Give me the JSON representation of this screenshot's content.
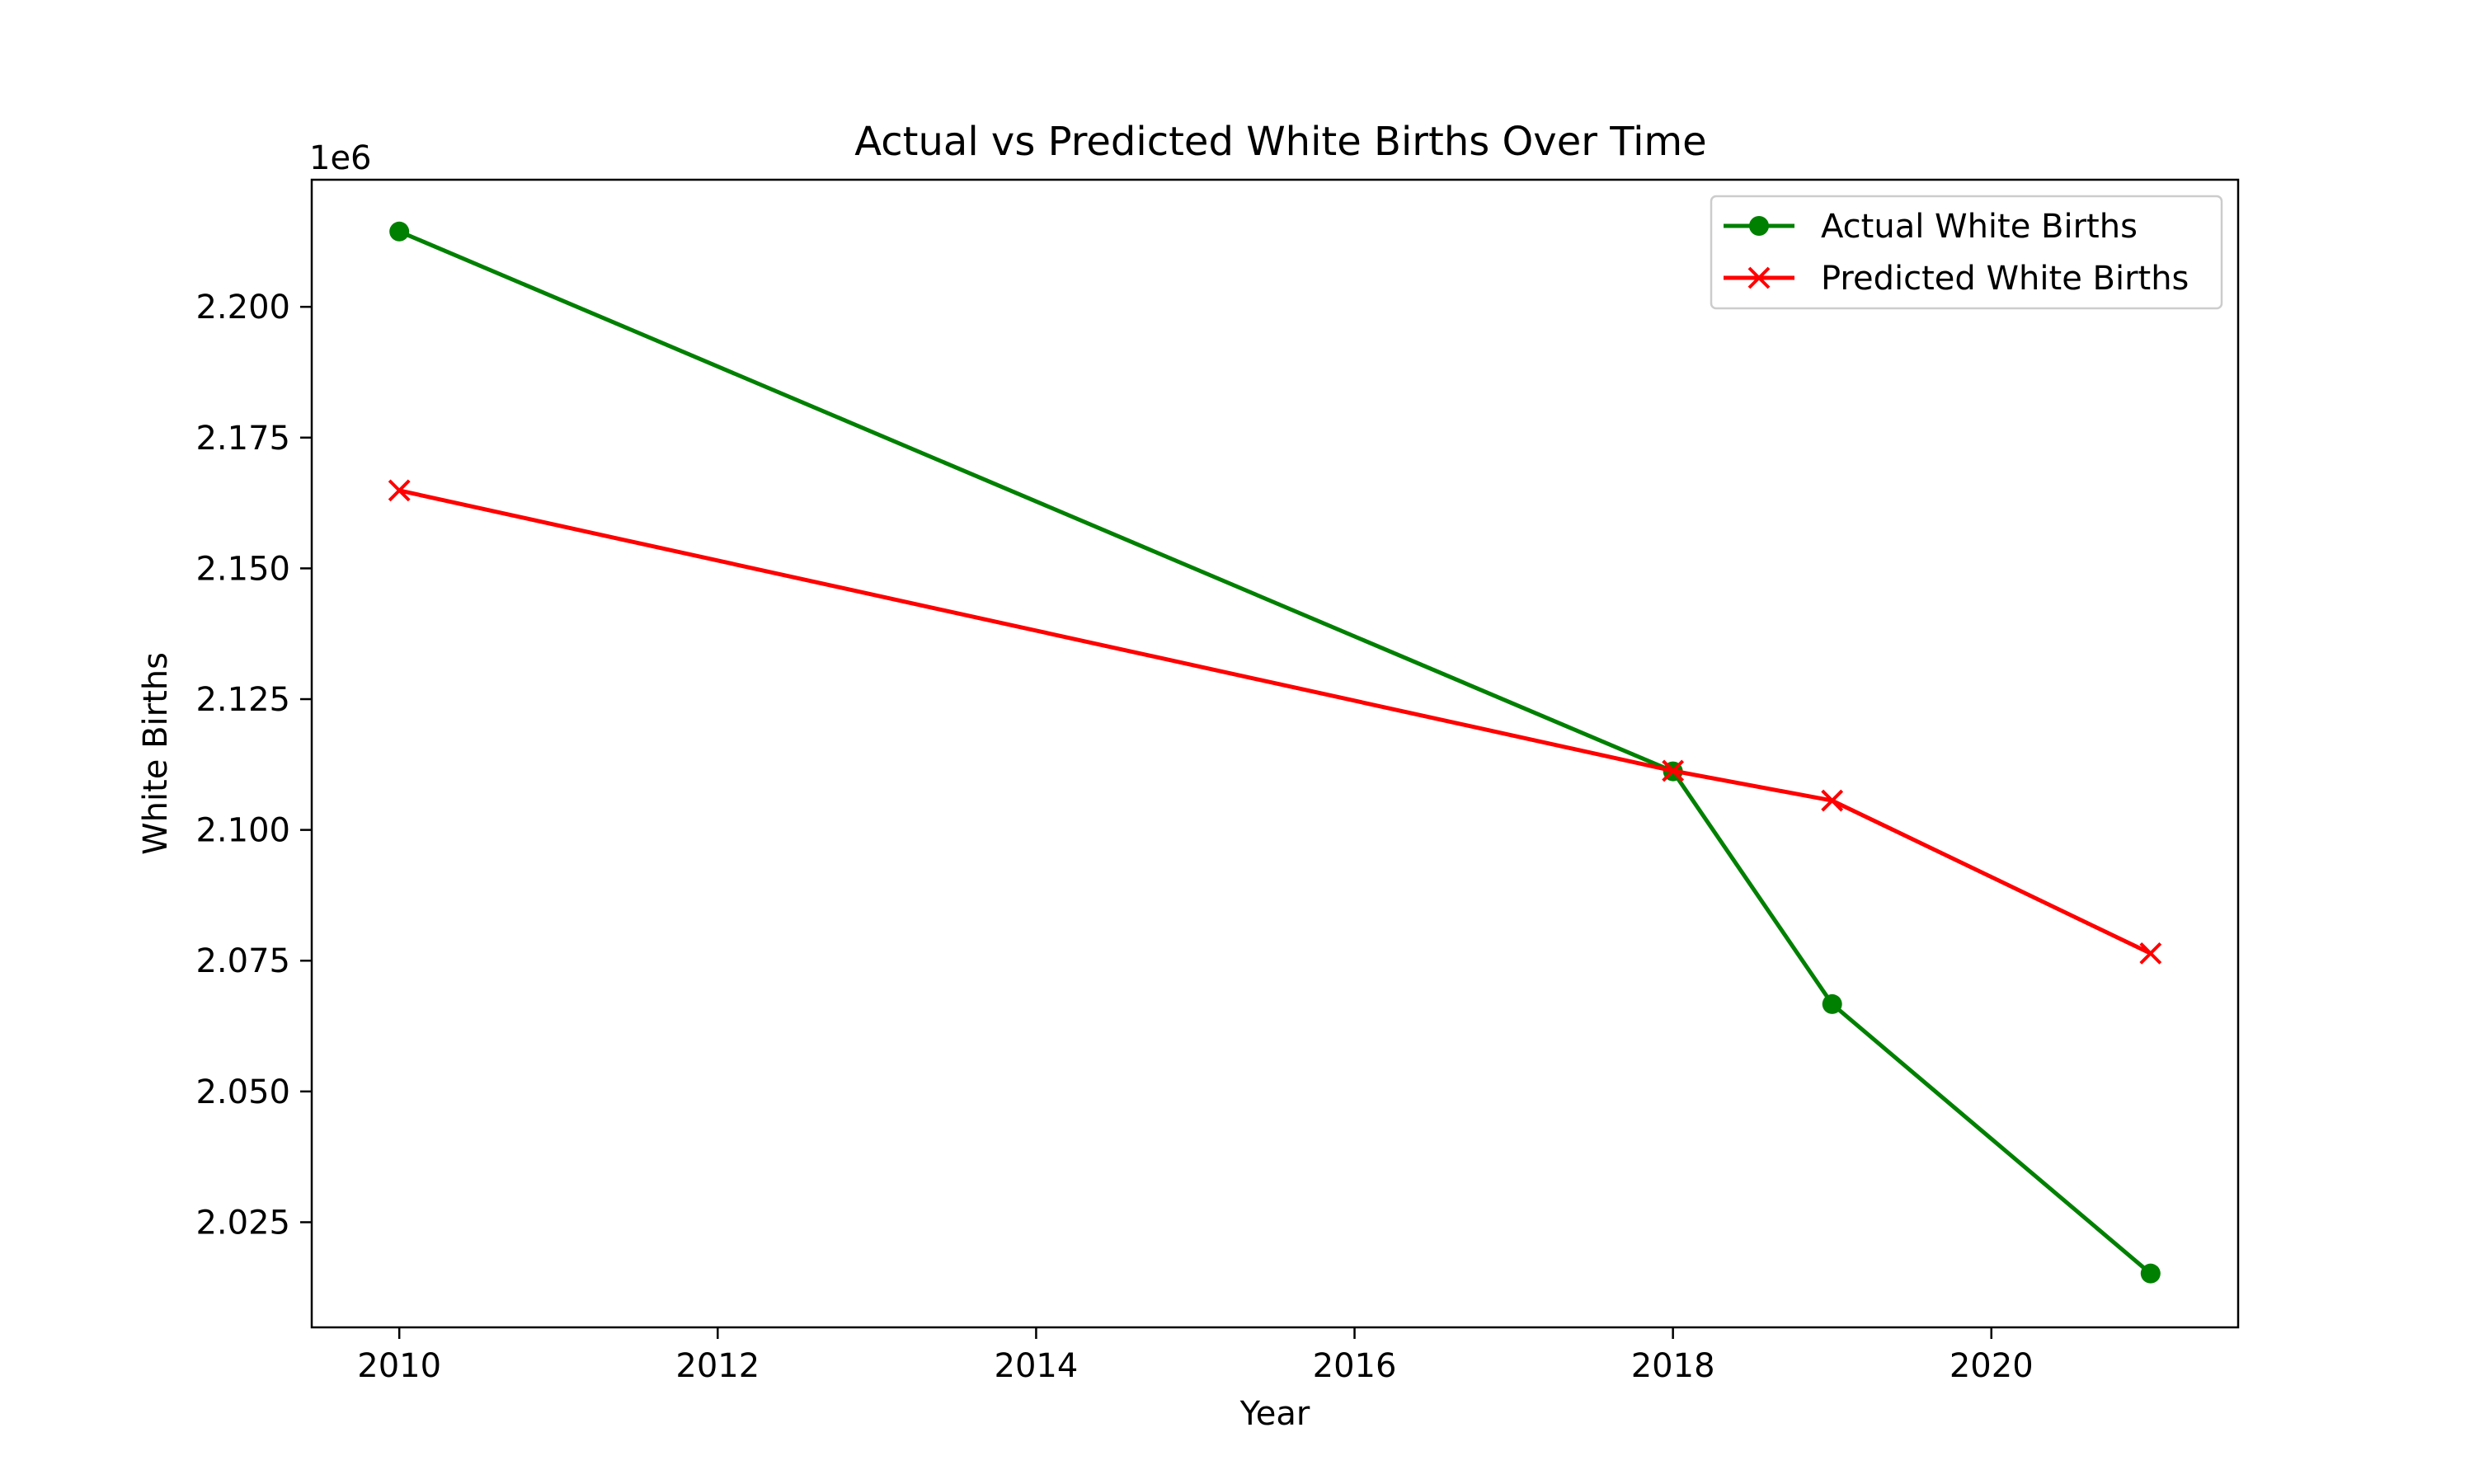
{
  "chart_data": {
    "type": "line",
    "title": "Actual vs Predicted White Births Over Time",
    "xlabel": "Year",
    "ylabel": "White Births",
    "y_offset_label": "1e6",
    "x": [
      2010,
      2018,
      2019,
      2021
    ],
    "xlim": [
      2009.45,
      2021.55
    ],
    "ylim": [
      2004900,
      2224300
    ],
    "xticks": [
      2010,
      2012,
      2014,
      2016,
      2018,
      2020
    ],
    "xtick_labels": [
      "2010",
      "2012",
      "2014",
      "2016",
      "2018",
      "2020"
    ],
    "yticks": [
      2025000,
      2050000,
      2075000,
      2100000,
      2125000,
      2150000,
      2175000,
      2200000
    ],
    "ytick_labels": [
      "2.025",
      "2.050",
      "2.075",
      "2.100",
      "2.125",
      "2.150",
      "2.175",
      "2.200"
    ],
    "grid": false,
    "legend_position": "top-right",
    "series": [
      {
        "name": "Actual White Births",
        "color": "#008000",
        "marker": "circle",
        "values": [
          2214400,
          2111200,
          2066700,
          2015200
        ]
      },
      {
        "name": "Predicted White Births",
        "color": "#ff0000",
        "marker": "x",
        "values": [
          2164900,
          2111300,
          2105600,
          2076400
        ]
      }
    ]
  }
}
